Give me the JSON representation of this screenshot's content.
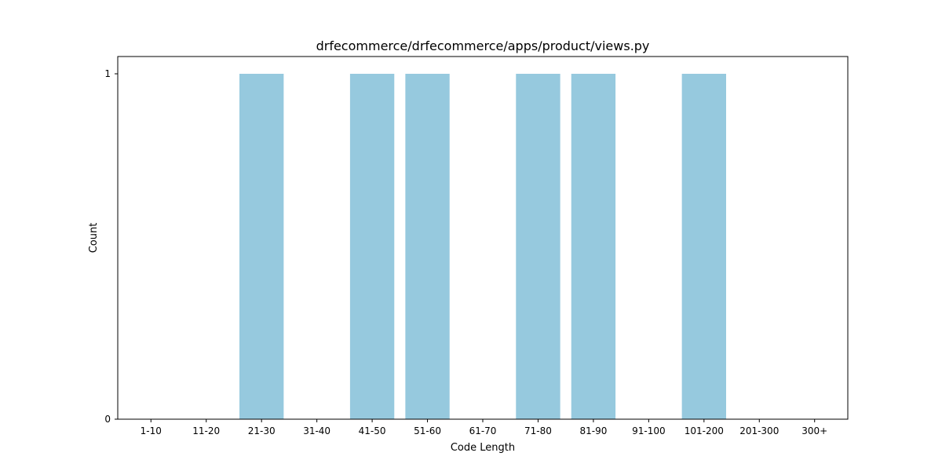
{
  "chart_data": {
    "type": "bar",
    "title": "drfecommerce/drfecommerce/apps/product/views.py",
    "xlabel": "Code Length",
    "ylabel": "Count",
    "categories": [
      "1-10",
      "11-20",
      "21-30",
      "31-40",
      "41-50",
      "51-60",
      "61-70",
      "71-80",
      "81-90",
      "91-100",
      "101-200",
      "201-300",
      "300+"
    ],
    "values": [
      0,
      0,
      1,
      0,
      1,
      1,
      0,
      1,
      1,
      0,
      1,
      0,
      0
    ],
    "ylim": [
      0,
      1.05
    ],
    "yticks": [
      0,
      1
    ],
    "bar_color": "#96c9de",
    "grid": false,
    "legend": "none"
  }
}
